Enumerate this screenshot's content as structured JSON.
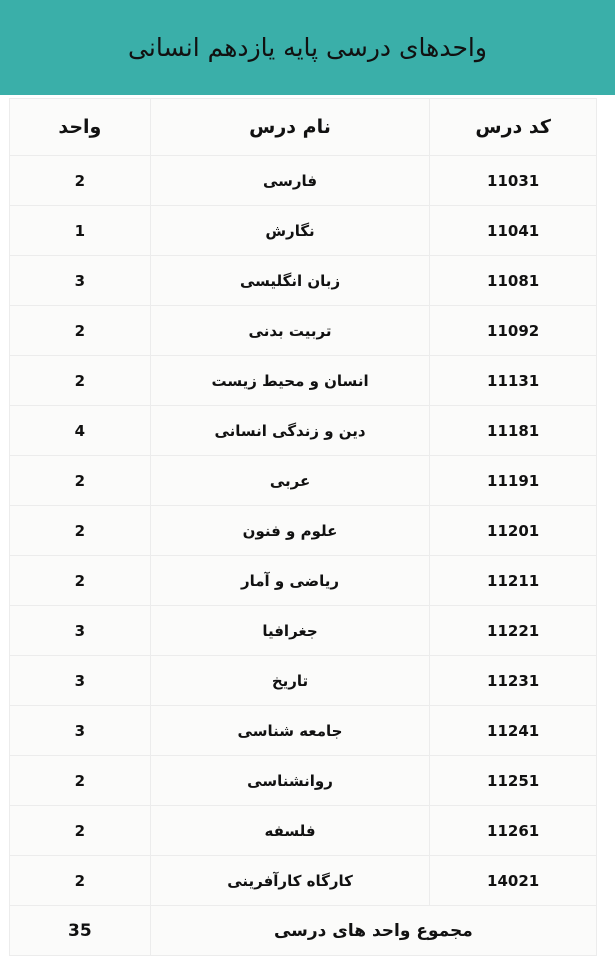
{
  "title": "واحدهای درسی پایه یازدهم انسانی",
  "colors": {
    "header": "#3aafa9"
  },
  "columns": [
    "کد درس",
    "نام درس",
    "واحد"
  ],
  "rows": [
    {
      "code": "11031",
      "name": "فارسی",
      "units": "2"
    },
    {
      "code": "11041",
      "name": "نگارش",
      "units": "1"
    },
    {
      "code": "11081",
      "name": "زبان انگلیسی",
      "units": "3"
    },
    {
      "code": "11092",
      "name": "تربیت بدنی",
      "units": "2"
    },
    {
      "code": "11131",
      "name": "انسان و محیط زیست",
      "units": "2"
    },
    {
      "code": "11181",
      "name": "دین و زندگی انسانی",
      "units": "4"
    },
    {
      "code": "11191",
      "name": "عربی",
      "units": "2"
    },
    {
      "code": "11201",
      "name": "علوم و فنون",
      "units": "2"
    },
    {
      "code": "11211",
      "name": "ریاضی و آمار",
      "units": "2"
    },
    {
      "code": "11221",
      "name": "جغرافیا",
      "units": "3"
    },
    {
      "code": "11231",
      "name": "تاریخ",
      "units": "3"
    },
    {
      "code": "11241",
      "name": "جامعه شناسی",
      "units": "3"
    },
    {
      "code": "11251",
      "name": "روانشناسی",
      "units": "2"
    },
    {
      "code": "11261",
      "name": "فلسفه",
      "units": "2"
    },
    {
      "code": "14021",
      "name": "کارگاه کارآفرینی",
      "units": "2"
    }
  ],
  "total": {
    "label": "مجموع واحد های درسی",
    "value": "35"
  }
}
